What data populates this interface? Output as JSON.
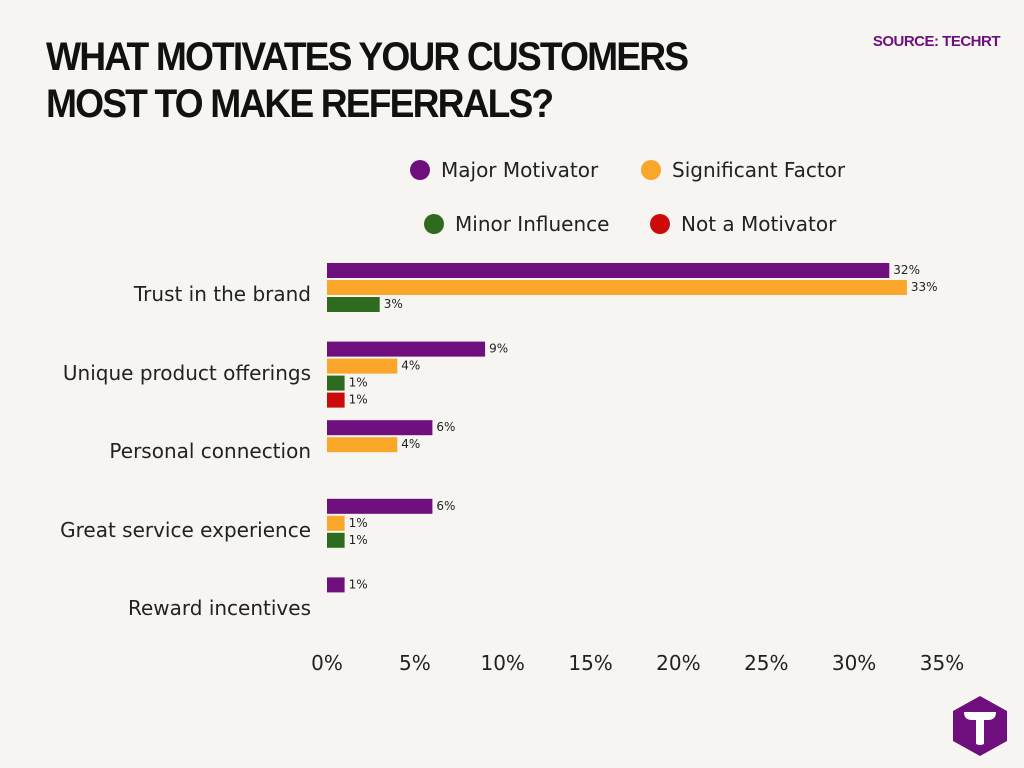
{
  "header": {
    "title": "WHAT MOTIVATES YOUR CUSTOMERS MOST TO MAKE REFERRALS?",
    "source": "SOURCE: TECHRT"
  },
  "colors": {
    "background": "#f6f5f1",
    "title": "#111111",
    "source": "#6e0f7d",
    "text": "#222222",
    "logo": "#6e0f7d"
  },
  "logo": {
    "icon": "t-hexagon-logo-icon"
  },
  "chart_data": {
    "type": "bar",
    "orientation": "horizontal",
    "categories": [
      "Trust in the brand",
      "Unique product offerings",
      "Personal connection",
      "Great service experience",
      "Reward incentives"
    ],
    "series": [
      {
        "name": "Major Motivator",
        "color": "#6e0f7d",
        "values": [
          32,
          9,
          6,
          6,
          1
        ]
      },
      {
        "name": "Significant Factor",
        "color": "#f9a62b",
        "values": [
          33,
          4,
          4,
          1,
          null
        ]
      },
      {
        "name": "Minor Influence",
        "color": "#2f6b1f",
        "values": [
          3,
          1,
          null,
          1,
          null
        ]
      },
      {
        "name": "Not a Motivator",
        "color": "#cc0a0a",
        "values": [
          null,
          1,
          null,
          null,
          null
        ]
      }
    ],
    "xlim": [
      0,
      35
    ],
    "xticks": [
      0,
      5,
      10,
      15,
      20,
      25,
      30,
      35
    ],
    "tick_suffix": "%",
    "value_suffix": "%",
    "legend_position": "top",
    "grid": false
  }
}
